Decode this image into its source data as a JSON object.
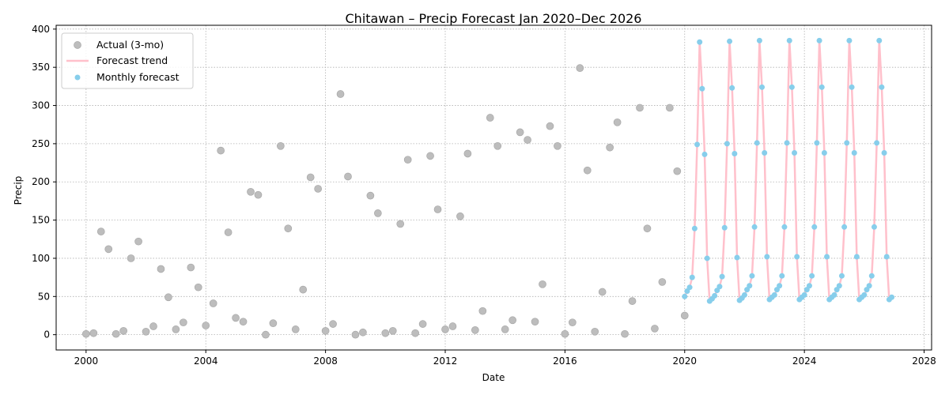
{
  "chart_data": {
    "type": "scatter",
    "title": "Chitawan – Precip Forecast Jan 2020–Dec 2026",
    "xlabel": "Date",
    "ylabel": "Precip",
    "xlim": [
      "1999-01",
      "2028-04"
    ],
    "ylim": [
      -20,
      405
    ],
    "x_ticks": [
      "2000",
      "2004",
      "2008",
      "2012",
      "2016",
      "2020",
      "2024",
      "2028"
    ],
    "y_ticks": [
      0,
      50,
      100,
      150,
      200,
      250,
      300,
      350,
      400
    ],
    "grid": true,
    "legend_position": "upper-left",
    "colors": {
      "actual": "#bdbdbd",
      "trend": "#ffc0cb",
      "forecast": "#87ceeb"
    },
    "series": [
      {
        "name": "Actual (3-mo)",
        "kind": "scatter",
        "points": [
          [
            "2000-01",
            1
          ],
          [
            "2000-04",
            2
          ],
          [
            "2000-07",
            135
          ],
          [
            "2000-10",
            112
          ],
          [
            "2001-01",
            1
          ],
          [
            "2001-04",
            5
          ],
          [
            "2001-07",
            100
          ],
          [
            "2001-10",
            122
          ],
          [
            "2002-01",
            4
          ],
          [
            "2002-04",
            11
          ],
          [
            "2002-07",
            86
          ],
          [
            "2002-10",
            49
          ],
          [
            "2003-01",
            7
          ],
          [
            "2003-04",
            16
          ],
          [
            "2003-07",
            88
          ],
          [
            "2003-10",
            62
          ],
          [
            "2004-01",
            12
          ],
          [
            "2004-04",
            41
          ],
          [
            "2004-07",
            241
          ],
          [
            "2004-10",
            134
          ],
          [
            "2005-01",
            22
          ],
          [
            "2005-04",
            17
          ],
          [
            "2005-07",
            187
          ],
          [
            "2005-10",
            183
          ],
          [
            "2006-01",
            0
          ],
          [
            "2006-04",
            15
          ],
          [
            "2006-07",
            247
          ],
          [
            "2006-10",
            139
          ],
          [
            "2007-01",
            7
          ],
          [
            "2007-04",
            59
          ],
          [
            "2007-07",
            206
          ],
          [
            "2007-10",
            191
          ],
          [
            "2008-01",
            5
          ],
          [
            "2008-04",
            14
          ],
          [
            "2008-07",
            315
          ],
          [
            "2008-10",
            207
          ],
          [
            "2009-01",
            0
          ],
          [
            "2009-04",
            3
          ],
          [
            "2009-07",
            182
          ],
          [
            "2009-10",
            159
          ],
          [
            "2010-01",
            2
          ],
          [
            "2010-04",
            5
          ],
          [
            "2010-07",
            145
          ],
          [
            "2010-10",
            229
          ],
          [
            "2011-01",
            2
          ],
          [
            "2011-04",
            14
          ],
          [
            "2011-07",
            234
          ],
          [
            "2011-10",
            164
          ],
          [
            "2012-01",
            7
          ],
          [
            "2012-04",
            11
          ],
          [
            "2012-07",
            155
          ],
          [
            "2012-10",
            237
          ],
          [
            "2013-01",
            6
          ],
          [
            "2013-04",
            31
          ],
          [
            "2013-07",
            284
          ],
          [
            "2013-10",
            247
          ],
          [
            "2014-01",
            7
          ],
          [
            "2014-04",
            19
          ],
          [
            "2014-07",
            265
          ],
          [
            "2014-10",
            255
          ],
          [
            "2015-01",
            17
          ],
          [
            "2015-04",
            66
          ],
          [
            "2015-07",
            273
          ],
          [
            "2015-10",
            247
          ],
          [
            "2016-01",
            1
          ],
          [
            "2016-04",
            16
          ],
          [
            "2016-07",
            349
          ],
          [
            "2016-10",
            215
          ],
          [
            "2017-01",
            4
          ],
          [
            "2017-04",
            56
          ],
          [
            "2017-07",
            245
          ],
          [
            "2017-10",
            278
          ],
          [
            "2018-01",
            1
          ],
          [
            "2018-04",
            44
          ],
          [
            "2018-07",
            297
          ],
          [
            "2018-10",
            139
          ],
          [
            "2019-01",
            8
          ],
          [
            "2019-04",
            69
          ],
          [
            "2019-07",
            297
          ],
          [
            "2019-10",
            214
          ],
          [
            "2020-01",
            25
          ]
        ]
      },
      {
        "name": "Forecast trend",
        "kind": "line",
        "x_start": "2020-01",
        "monthly_cycle": [
          50,
          57,
          62,
          75,
          139,
          249,
          383,
          322,
          236,
          100,
          44,
          47
        ],
        "cycle_offsets": [
          0,
          1,
          2,
          2,
          2,
          2,
          2
        ],
        "end": "2026-12"
      },
      {
        "name": "Monthly forecast",
        "kind": "scatter",
        "x_start": "2020-01",
        "monthly_cycle": [
          50,
          57,
          62,
          75,
          139,
          249,
          383,
          322,
          236,
          100,
          44,
          47
        ],
        "cycle_offsets": [
          0,
          1,
          2,
          2,
          2,
          2,
          2
        ],
        "end": "2026-12"
      }
    ]
  }
}
